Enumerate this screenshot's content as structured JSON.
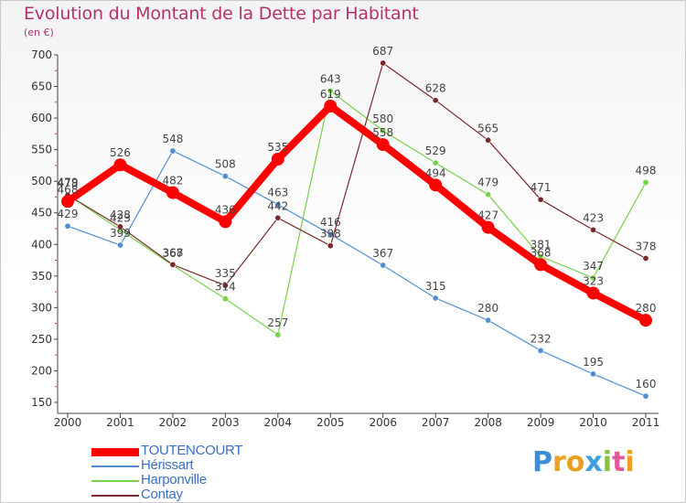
{
  "chart_data": {
    "type": "line",
    "title": "Evolution du Montant de la Dette par Habitant",
    "subtitle": "(en €)",
    "xlabel": "",
    "ylabel": "",
    "ylim": [
      150,
      700
    ],
    "yticks": [
      "150",
      "200",
      "250",
      "300",
      "350",
      "400",
      "450",
      "500",
      "550",
      "600",
      "650",
      "700"
    ],
    "categories": [
      "2000",
      "2001",
      "2002",
      "2003",
      "2004",
      "2005",
      "2006",
      "2007",
      "2008",
      "2009",
      "2010",
      "2011"
    ],
    "grid": false,
    "legend_position": "bottom-left",
    "series": [
      {
        "name": "TOUTENCOURT",
        "color": "#ff0000",
        "values": [
          468,
          526,
          482,
          436,
          535,
          619,
          558,
          494,
          427,
          368,
          323,
          280
        ],
        "labels": [
          "468",
          "526",
          "482",
          "436",
          "535",
          "619",
          "558",
          "494",
          "427",
          "368",
          "323",
          "280"
        ]
      },
      {
        "name": "Hérissart",
        "color": "#4f8fd1",
        "values": [
          429,
          399,
          548,
          508,
          463,
          416,
          367,
          315,
          280,
          232,
          195,
          160
        ],
        "labels": [
          "429",
          "399",
          "548",
          "508",
          "463",
          "416",
          "367",
          "315",
          "280",
          "232",
          "195",
          "160"
        ]
      },
      {
        "name": "Harponville",
        "color": "#77d14a",
        "values": [
          479,
          423,
          367,
          314,
          257,
          643,
          580,
          529,
          479,
          381,
          347,
          null
        ],
        "labels": [
          "479",
          "423",
          "367",
          "314",
          "257",
          "643",
          "580",
          "529",
          "479",
          "381",
          "347",
          "498"
        ]
      },
      {
        "name": "Contay",
        "color": "#7a2a2a",
        "values": [
          478,
          428,
          368,
          335,
          442,
          398,
          687,
          628,
          565,
          471,
          423,
          378
        ],
        "labels": [
          "478",
          "428",
          "368",
          "335",
          "442",
          "398",
          "687",
          "628",
          "565",
          "471",
          "423",
          "378"
        ]
      }
    ]
  },
  "harponville_2011": 498,
  "logo": {
    "letters": [
      "P",
      "r",
      "o",
      "x",
      "i",
      "t",
      "i"
    ],
    "colors": [
      "#3a8fd6",
      "#f0a020",
      "#e8a020",
      "#3aa0e0",
      "#88c040",
      "#e05a9a",
      "#f0a020"
    ]
  }
}
